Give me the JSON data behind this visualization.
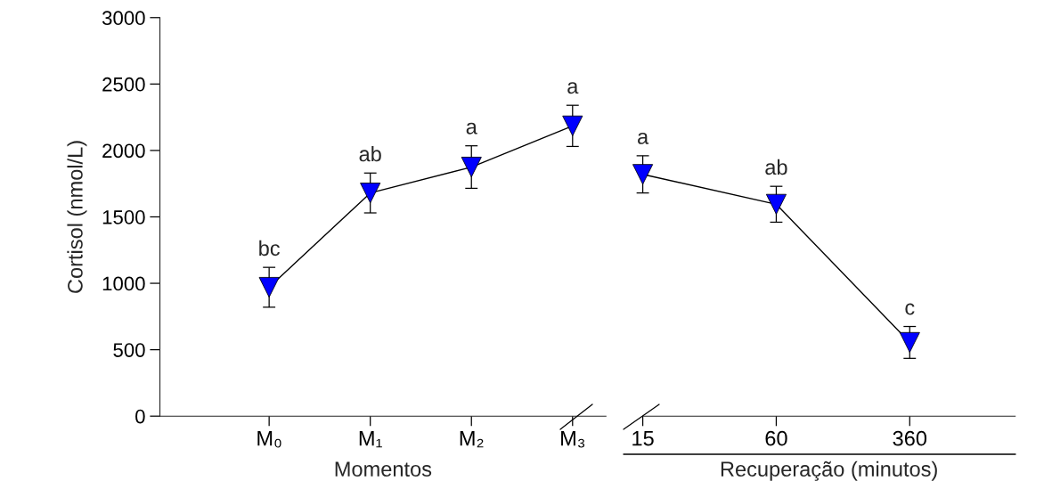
{
  "chart_data": [
    {
      "type": "line",
      "ylabel": "Cortisol (nmol/L)",
      "xlabel": "Momentos",
      "categories": [
        "M₀",
        "M₁",
        "M₂",
        "M₃"
      ],
      "series": [
        {
          "color": "#0000ff",
          "values": [
            970,
            1680,
            1875,
            2185
          ],
          "errors": [
            150,
            150,
            160,
            155
          ]
        }
      ],
      "ylim": [
        0,
        3000
      ],
      "yticks": [
        0,
        500,
        1000,
        1500,
        2000,
        2500,
        3000
      ],
      "marker": "triangle",
      "grid": false,
      "annotations": [
        {
          "text": "bc",
          "x": "M₀",
          "y": 970
        },
        {
          "text": "ab",
          "x": "M₁",
          "y": 1680
        },
        {
          "text": "a",
          "x": "M₂",
          "y": 1875
        },
        {
          "text": "a",
          "x": "M₃",
          "y": 2185
        }
      ]
    },
    {
      "type": "line",
      "xlabel": "Recuperação (minutos)",
      "categories": [
        "15",
        "60",
        "360"
      ],
      "series": [
        {
          "color": "#0000ff",
          "values": [
            1820,
            1595,
            555
          ],
          "errors": [
            140,
            135,
            120
          ]
        }
      ],
      "ylim": [
        0,
        3000
      ],
      "tick_labels": "x",
      "marker": "triangle",
      "grid": false,
      "annotations": [
        {
          "text": "a",
          "x": "15",
          "y": 1820
        },
        {
          "text": "ab",
          "x": "60",
          "y": 1595
        },
        {
          "text": "c",
          "x": "360",
          "y": 555
        }
      ]
    }
  ]
}
